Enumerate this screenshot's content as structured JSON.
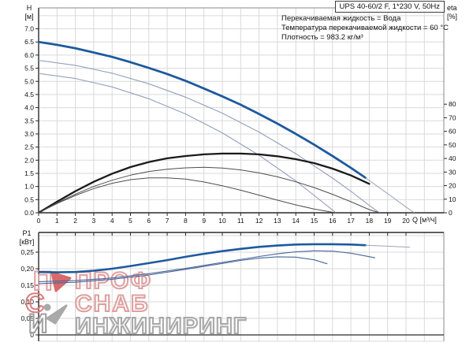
{
  "header": {
    "title_box": "UPS 40-60/2 F, 1*230 V, 50Hz"
  },
  "info": {
    "lines": [
      "Перекачиваемая жидкость = Вода",
      "Температура перекачиваемой жидкости = 60 °C",
      "Плотность = 983.2 кг/м³"
    ]
  },
  "axes": {
    "h_label_line1": "H",
    "h_label_line2": "[м]",
    "eta_label_line1": "eta",
    "eta_label_line2": "[%]",
    "q_label": "Q [м³/ч]",
    "p1_label_line1": "P1",
    "p1_label_line2": "[кВт]"
  },
  "watermark": {
    "line1": "ПРОФ",
    "line2": "СНАБ",
    "line3": "ИНЖИНИРИНГ",
    "monogram_p": "П",
    "monogram_s": "С",
    "monogram_i": "И"
  },
  "colors": {
    "curve_blue": "#1d5a9e",
    "curve_thin_blue": "#94a0bc",
    "curve_thin_gray": "#9aa4ba",
    "curve_black": "#1a1a1a",
    "curve_dark_thin": "#4d4d4d",
    "p1_thin": "#49679b",
    "grid": "#d9d9d9",
    "frame_gray": "#8a8a8a",
    "axis_dark": "#2a2a2a",
    "tick_text": "#111111",
    "wm_pink": "#dfa0a0",
    "wm_red": "#d86a6a",
    "wm_gray": "#a9a9a9"
  },
  "chart_data": [
    {
      "type": "line",
      "title": "UPS 40-60/2 F, 1*230 V, 50Hz",
      "xlabel": "Q [м³/ч]",
      "ylabel_left": "H [м]",
      "ylabel_right": "eta [%]",
      "grid": true,
      "xlim": [
        0,
        22
      ],
      "ylim_left": [
        0,
        7.8
      ],
      "ylim_right": [
        0,
        150
      ],
      "x_ticks": [
        "0",
        "1",
        "2",
        "3",
        "4",
        "5",
        "6",
        "7",
        "8",
        "9",
        "10",
        "11",
        "12",
        "13",
        "14",
        "15",
        "16",
        "17",
        "18",
        "19",
        "20"
      ],
      "y_ticks_left": [
        "0.0",
        "0.5",
        "1.0",
        "1.5",
        "2.0",
        "2.5",
        "3.0",
        "3.5",
        "4.0",
        "4.5",
        "5.0",
        "5.5",
        "6.0",
        "6.5",
        "7.0"
      ],
      "y_ticks_right": [
        "0",
        "10",
        "20",
        "30",
        "40",
        "50",
        "60",
        "70",
        "80"
      ],
      "annotations": [
        "Перекачиваемая жидкость = Вода",
        "Температура перекачиваемой жидкости = 60 °C",
        "Плотность = 983.2 кг/м³"
      ],
      "series": [
        {
          "name": "head-curve-speed3-thick",
          "axis": "H",
          "color": "curve_blue",
          "width": 2.8,
          "points": [
            [
              0,
              6.5
            ],
            [
              1,
              6.39
            ],
            [
              2,
              6.26
            ],
            [
              3,
              6.1
            ],
            [
              4,
              5.93
            ],
            [
              5,
              5.73
            ],
            [
              6,
              5.51
            ],
            [
              7,
              5.28
            ],
            [
              8,
              5.02
            ],
            [
              9,
              4.73
            ],
            [
              10,
              4.43
            ],
            [
              11,
              4.11
            ],
            [
              12,
              3.76
            ],
            [
              13,
              3.39
            ],
            [
              14,
              3.0
            ],
            [
              15,
              2.59
            ],
            [
              16,
              2.16
            ],
            [
              17,
              1.71
            ],
            [
              17.8,
              1.33
            ]
          ]
        },
        {
          "name": "head-curve-speed3-extension",
          "axis": "H",
          "color": "curve_thin_gray",
          "width": 1,
          "points": [
            [
              17.8,
              1.33
            ],
            [
              19,
              0.73
            ],
            [
              20,
              0.22
            ],
            [
              20.45,
              0
            ]
          ]
        },
        {
          "name": "head-curve-speed2",
          "axis": "H",
          "color": "curve_thin_blue",
          "width": 1.1,
          "points": [
            [
              0,
              5.8
            ],
            [
              2,
              5.61
            ],
            [
              4,
              5.31
            ],
            [
              6,
              4.91
            ],
            [
              8,
              4.4
            ],
            [
              10,
              3.79
            ],
            [
              12,
              3.07
            ],
            [
              14,
              2.25
            ],
            [
              16,
              1.32
            ],
            [
              17,
              0.82
            ],
            [
              18,
              0.28
            ],
            [
              18.55,
              0
            ]
          ]
        },
        {
          "name": "head-curve-speed1",
          "axis": "H",
          "color": "curve_thin_blue",
          "width": 1.1,
          "points": [
            [
              0,
              5.3
            ],
            [
              2,
              5.11
            ],
            [
              4,
              4.79
            ],
            [
              6,
              4.34
            ],
            [
              8,
              3.76
            ],
            [
              10,
              3.04
            ],
            [
              12,
              2.19
            ],
            [
              14,
              1.21
            ],
            [
              15,
              0.66
            ],
            [
              16.15,
              0.02
            ]
          ]
        },
        {
          "name": "efficiency-curve-speed3-thick",
          "axis": "eta",
          "color": "curve_black",
          "width": 2.3,
          "points": [
            [
              0,
              0
            ],
            [
              1,
              8.1
            ],
            [
              2,
              15.9
            ],
            [
              3,
              22.8
            ],
            [
              4,
              28.8
            ],
            [
              5,
              33.7
            ],
            [
              6,
              37.4
            ],
            [
              7,
              40.1
            ],
            [
              8,
              41.8
            ],
            [
              9,
              43
            ],
            [
              10,
              43.6
            ],
            [
              11,
              43.6
            ],
            [
              12,
              43
            ],
            [
              13,
              41.6
            ],
            [
              14,
              39.5
            ],
            [
              15,
              36.6
            ],
            [
              16,
              32.5
            ],
            [
              17,
              27.5
            ],
            [
              18,
              21.3
            ]
          ]
        },
        {
          "name": "efficiency-curve-speed2",
          "axis": "eta",
          "color": "curve_dark_thin",
          "width": 1,
          "points": [
            [
              0,
              0
            ],
            [
              1,
              7.2
            ],
            [
              2,
              13.7
            ],
            [
              3,
              19.4
            ],
            [
              4,
              24
            ],
            [
              5,
              27.7
            ],
            [
              6,
              30.4
            ],
            [
              7,
              32.1
            ],
            [
              8,
              33.1
            ],
            [
              9,
              33.5
            ],
            [
              10,
              32.9
            ],
            [
              11,
              31.6
            ],
            [
              12,
              29.4
            ],
            [
              13,
              26.5
            ],
            [
              14,
              22.8
            ],
            [
              15,
              18.6
            ],
            [
              16,
              13.6
            ],
            [
              17,
              8.1
            ],
            [
              18,
              2.3
            ],
            [
              18.55,
              0
            ]
          ]
        },
        {
          "name": "efficiency-curve-speed1",
          "axis": "eta",
          "color": "curve_dark_thin",
          "width": 1,
          "points": [
            [
              0,
              0
            ],
            [
              1,
              6.8
            ],
            [
              2,
              12.8
            ],
            [
              3,
              17.8
            ],
            [
              4,
              21.7
            ],
            [
              5,
              24.4
            ],
            [
              6,
              25.7
            ],
            [
              7,
              25.7
            ],
            [
              8,
              24.8
            ],
            [
              9,
              22.7
            ],
            [
              10,
              19.9
            ],
            [
              11,
              16.6
            ],
            [
              12,
              13
            ],
            [
              13,
              9.3
            ],
            [
              14,
              5.8
            ],
            [
              15,
              2.7
            ],
            [
              16.15,
              0
            ]
          ]
        }
      ]
    },
    {
      "type": "line",
      "title": "P1 power curves",
      "xlabel": "Q [м³/ч]",
      "ylabel_left": "P1 [кВт]",
      "grid": true,
      "xlim": [
        0,
        22
      ],
      "ylim_left": [
        0,
        0.31
      ],
      "y_ticks_left": [
        "0",
        "0,05",
        "0,10",
        "0,15",
        "0,20",
        "0,25"
      ],
      "series": [
        {
          "name": "power-curve-speed3-thick",
          "axis": "P1",
          "color": "curve_blue",
          "width": 2.6,
          "points": [
            [
              0,
              0.19
            ],
            [
              1,
              0.189
            ],
            [
              2,
              0.19
            ],
            [
              3,
              0.194
            ],
            [
              4,
              0.2
            ],
            [
              5,
              0.208
            ],
            [
              6,
              0.217
            ],
            [
              7,
              0.226
            ],
            [
              8,
              0.236
            ],
            [
              9,
              0.245
            ],
            [
              10,
              0.253
            ],
            [
              11,
              0.26
            ],
            [
              12,
              0.266
            ],
            [
              13,
              0.27
            ],
            [
              14,
              0.273
            ],
            [
              15,
              0.274
            ],
            [
              16,
              0.274
            ],
            [
              17,
              0.273
            ],
            [
              17.8,
              0.271
            ]
          ]
        },
        {
          "name": "power-curve-speed3-extension",
          "axis": "P1",
          "color": "curve_thin_gray",
          "width": 1,
          "points": [
            [
              17.8,
              0.271
            ],
            [
              19,
              0.268
            ],
            [
              20.2,
              0.265
            ]
          ]
        },
        {
          "name": "power-curve-speed2",
          "axis": "P1",
          "color": "p1_thin",
          "width": 1.1,
          "points": [
            [
              0,
              0.161
            ],
            [
              2,
              0.164
            ],
            [
              4,
              0.172
            ],
            [
              6,
              0.185
            ],
            [
              8,
              0.201
            ],
            [
              10,
              0.219
            ],
            [
              12,
              0.237
            ],
            [
              13,
              0.245
            ],
            [
              14,
              0.251
            ],
            [
              15,
              0.254
            ],
            [
              16,
              0.253
            ],
            [
              17,
              0.247
            ],
            [
              18.3,
              0.233
            ]
          ]
        },
        {
          "name": "power-curve-speed1",
          "axis": "P1",
          "color": "p1_thin",
          "width": 1.1,
          "points": [
            [
              0,
              0.155
            ],
            [
              2,
              0.159
            ],
            [
              4,
              0.168
            ],
            [
              6,
              0.181
            ],
            [
              8,
              0.198
            ],
            [
              10,
              0.216
            ],
            [
              11,
              0.225
            ],
            [
              12,
              0.232
            ],
            [
              13,
              0.236
            ],
            [
              14,
              0.235
            ],
            [
              15,
              0.227
            ],
            [
              15.7,
              0.215
            ]
          ]
        }
      ]
    }
  ]
}
